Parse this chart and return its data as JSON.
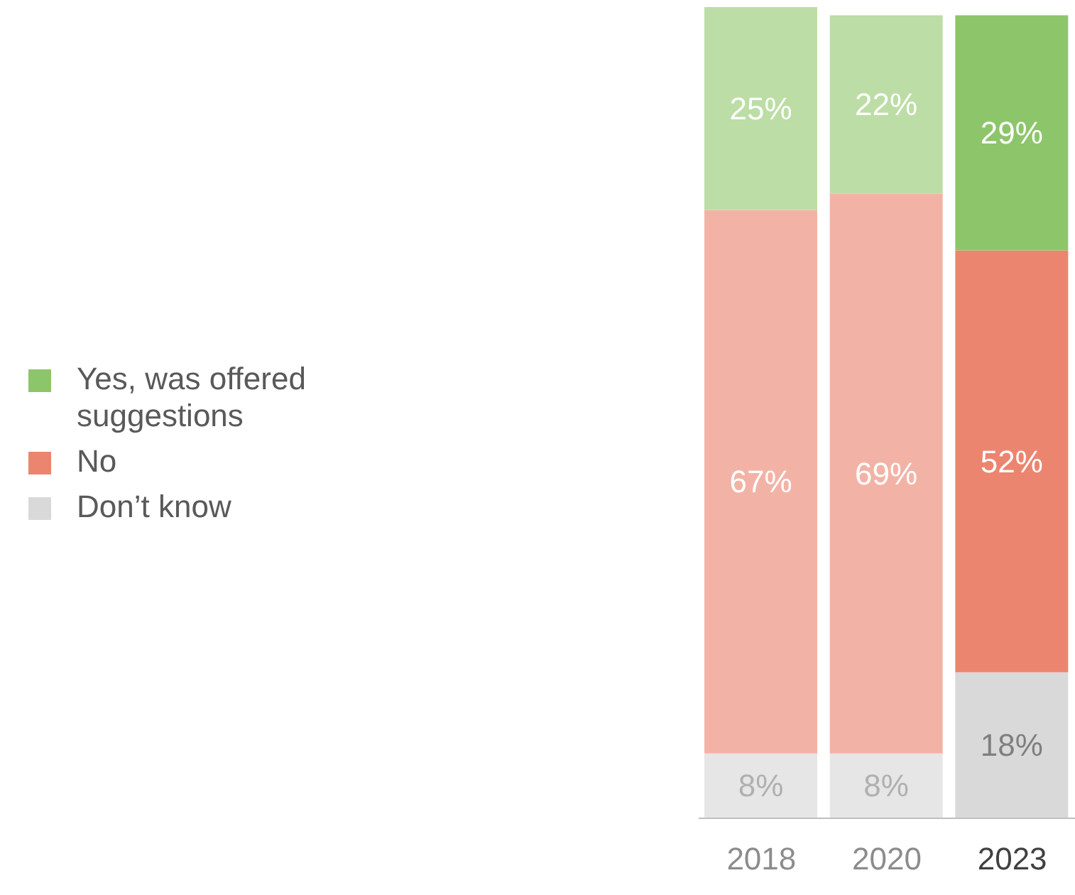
{
  "chart_data": {
    "type": "bar",
    "stacked": true,
    "categories": [
      "2018",
      "2020",
      "2023"
    ],
    "legend": "left",
    "series": [
      {
        "name": "Don’t know",
        "color": "#d9d9d9",
        "colors": [
          "#e6e6e6",
          "#e6e6e6",
          "#d9d9d9"
        ],
        "values": [
          8,
          8,
          18
        ],
        "value_labels": [
          "8%",
          "8%",
          "18%"
        ]
      },
      {
        "name": "No",
        "color": "#ec8570",
        "colors": [
          "#f2b3a6",
          "#f2b3a6",
          "#ec8570"
        ],
        "values": [
          67,
          69,
          52
        ],
        "value_labels": [
          "67%",
          "69%",
          "52%"
        ]
      },
      {
        "name": "Yes, was offered suggestions",
        "color": "#8dc56a",
        "colors": [
          "#bcdda5",
          "#bcdda5",
          "#8dc56a"
        ],
        "values": [
          25,
          22,
          29
        ],
        "value_labels": [
          "25%",
          "22%",
          "29%"
        ]
      }
    ]
  }
}
